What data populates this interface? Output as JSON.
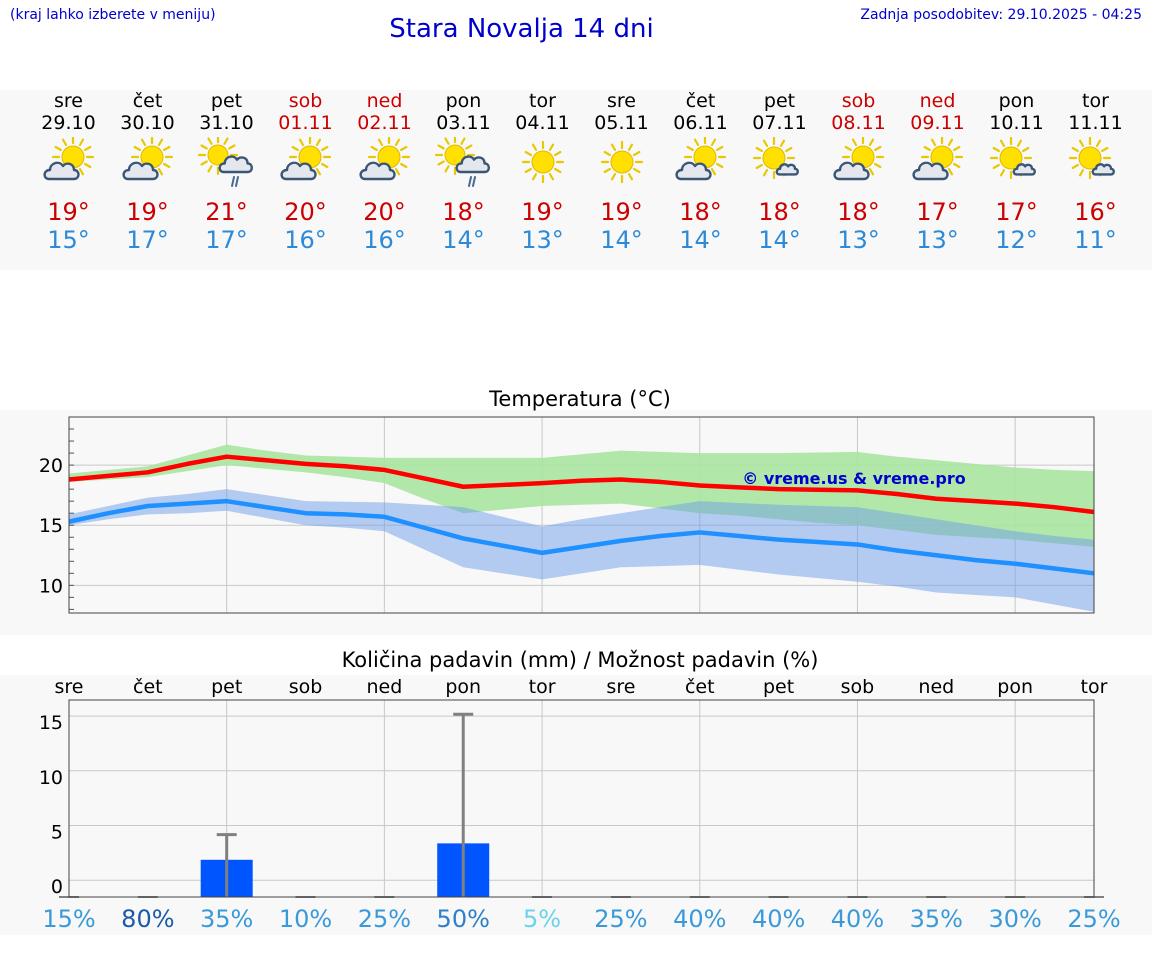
{
  "header": {
    "menu_hint": "(kraj lahko izberete v meniju)",
    "title": "Stara Novalja 14 dni",
    "updated": "Zadnja posodobitev: 29.10.2025 - 04:25"
  },
  "colors": {
    "max": "#ff0000",
    "min": "#1e90ff",
    "weekend": "#cc0000",
    "max_band": "#a8e6a0",
    "min_band": "#a8c4f0",
    "overlap_band": "#7cc4a0",
    "bar": "#0055ff",
    "error": "#808080"
  },
  "days": [
    {
      "name": "sre",
      "date": "29.10",
      "weekend": false,
      "icon": "sun-cloud-icon",
      "tmax": "19°",
      "tmin": "15°"
    },
    {
      "name": "čet",
      "date": "30.10",
      "weekend": false,
      "icon": "sun-cloud-icon",
      "tmax": "19°",
      "tmin": "17°"
    },
    {
      "name": "pet",
      "date": "31.10",
      "weekend": false,
      "icon": "sun-rain-cloud-icon",
      "tmax": "21°",
      "tmin": "17°"
    },
    {
      "name": "sob",
      "date": "01.11",
      "weekend": true,
      "icon": "sun-cloud-icon",
      "tmax": "20°",
      "tmin": "16°"
    },
    {
      "name": "ned",
      "date": "02.11",
      "weekend": true,
      "icon": "sun-cloud-icon",
      "tmax": "20°",
      "tmin": "16°"
    },
    {
      "name": "pon",
      "date": "03.11",
      "weekend": false,
      "icon": "sun-rain-cloud-icon",
      "tmax": "18°",
      "tmin": "14°"
    },
    {
      "name": "tor",
      "date": "04.11",
      "weekend": false,
      "icon": "sun-icon",
      "tmax": "19°",
      "tmin": "13°"
    },
    {
      "name": "sre",
      "date": "05.11",
      "weekend": false,
      "icon": "sun-icon",
      "tmax": "19°",
      "tmin": "14°"
    },
    {
      "name": "čet",
      "date": "06.11",
      "weekend": false,
      "icon": "sun-cloud-icon",
      "tmax": "18°",
      "tmin": "14°"
    },
    {
      "name": "pet",
      "date": "07.11",
      "weekend": false,
      "icon": "sun-small-cloud-icon",
      "tmax": "18°",
      "tmin": "14°"
    },
    {
      "name": "sob",
      "date": "08.11",
      "weekend": true,
      "icon": "sun-cloud-icon",
      "tmax": "18°",
      "tmin": "13°"
    },
    {
      "name": "ned",
      "date": "09.11",
      "weekend": true,
      "icon": "sun-cloud-icon",
      "tmax": "17°",
      "tmin": "13°"
    },
    {
      "name": "pon",
      "date": "10.11",
      "weekend": false,
      "icon": "sun-small-cloud-icon",
      "tmax": "17°",
      "tmin": "12°"
    },
    {
      "name": "tor",
      "date": "11.11",
      "weekend": false,
      "icon": "sun-small-cloud-icon",
      "tmax": "16°",
      "tmin": "11°"
    }
  ],
  "chart_data": [
    {
      "type": "line",
      "title": "Temperatura (°C)",
      "watermark": "© vreme.us & vreme.pro",
      "xlabel": "",
      "ylabel": "",
      "ylim": [
        7.7,
        24
      ],
      "yticks": [
        10,
        15,
        20
      ],
      "x": [
        0,
        0.5,
        1,
        1.5,
        2,
        2.5,
        3,
        3.5,
        4,
        4.5,
        5,
        5.5,
        6,
        6.5,
        7,
        7.5,
        8,
        8.5,
        9,
        9.5,
        10,
        10.5,
        11,
        11.5,
        12,
        12.5,
        13
      ],
      "series": [
        {
          "name": "max",
          "values": [
            18.8,
            19.1,
            19.4,
            20.1,
            20.7,
            20.4,
            20.1,
            19.9,
            19.6,
            18.9,
            18.2,
            18.35,
            18.5,
            18.7,
            18.8,
            18.6,
            18.3,
            18.15,
            18.0,
            17.95,
            17.9,
            17.6,
            17.2,
            17.0,
            16.8,
            16.5,
            16.1
          ]
        },
        {
          "name": "min",
          "values": [
            15.3,
            16.0,
            16.6,
            16.8,
            17.0,
            16.5,
            16.0,
            15.9,
            15.7,
            14.8,
            13.9,
            13.3,
            12.7,
            13.2,
            13.7,
            14.1,
            14.4,
            14.1,
            13.8,
            13.6,
            13.4,
            12.9,
            12.5,
            12.1,
            11.8,
            11.4,
            11.0
          ]
        },
        {
          "name": "max_band_upper",
          "values": [
            19.3,
            19.6,
            19.9,
            20.8,
            21.7,
            21.2,
            20.8,
            20.7,
            20.6,
            20.6,
            20.6,
            20.6,
            20.6,
            20.9,
            21.2,
            21.1,
            21.0,
            21.0,
            21.0,
            21.05,
            21.1,
            20.7,
            20.4,
            20.1,
            19.8,
            19.6,
            19.5
          ]
        },
        {
          "name": "max_band_lower",
          "values": [
            18.6,
            18.8,
            19.0,
            19.5,
            20.0,
            19.7,
            19.4,
            19.0,
            18.5,
            17.2,
            16.0,
            16.3,
            16.6,
            16.7,
            16.8,
            16.4,
            16.0,
            15.8,
            15.5,
            15.2,
            15.0,
            14.6,
            14.2,
            14.0,
            13.8,
            13.5,
            13.2
          ]
        },
        {
          "name": "min_band_upper",
          "values": [
            15.9,
            16.6,
            17.3,
            17.6,
            18.0,
            17.5,
            17.0,
            16.95,
            16.9,
            16.7,
            16.5,
            15.7,
            14.9,
            15.5,
            16.0,
            16.5,
            17.0,
            16.85,
            16.7,
            16.6,
            16.5,
            16.0,
            15.5,
            15.0,
            14.5,
            14.1,
            13.8
          ]
        },
        {
          "name": "min_band_lower",
          "values": [
            15.0,
            15.5,
            15.9,
            16.0,
            16.2,
            15.6,
            15.0,
            14.8,
            14.5,
            13.0,
            11.5,
            11.0,
            10.5,
            11.0,
            11.5,
            11.6,
            11.7,
            11.3,
            10.9,
            10.6,
            10.3,
            9.9,
            9.4,
            9.2,
            9.0,
            8.4,
            7.8
          ]
        }
      ]
    },
    {
      "type": "bar",
      "title": "Količina padavin (mm) / Možnost padavin (%)",
      "xlabel": "",
      "ylabel": "",
      "ylim": [
        -0.8,
        17.2
      ],
      "yticks": [
        0,
        5,
        10,
        15
      ],
      "categories": [
        "sre",
        "čet",
        "pet",
        "sob",
        "ned",
        "pon",
        "tor",
        "sre",
        "čet",
        "pet",
        "sob",
        "ned",
        "pon",
        "tor"
      ],
      "values": [
        0,
        0,
        2.6,
        0,
        0,
        4.1,
        0,
        0,
        0,
        0,
        0,
        0,
        0,
        0
      ],
      "error_high": [
        0,
        0,
        4.9,
        0,
        0,
        15.9,
        0,
        0,
        0,
        0,
        0,
        0,
        0,
        0
      ],
      "probability": [
        "15%",
        "80%",
        "35%",
        "10%",
        "25%",
        "50%",
        "5%",
        "25%",
        "40%",
        "40%",
        "40%",
        "35%",
        "30%",
        "25%"
      ],
      "probability_colors": [
        "#3a9ad9",
        "#1a5aa8",
        "#3a9ad9",
        "#3a9ad9",
        "#3a9ad9",
        "#2c80c8",
        "#6ad4e8",
        "#3a9ad9",
        "#3a9ad9",
        "#3a9ad9",
        "#3a9ad9",
        "#3a9ad9",
        "#3a9ad9",
        "#3a9ad9"
      ]
    }
  ]
}
